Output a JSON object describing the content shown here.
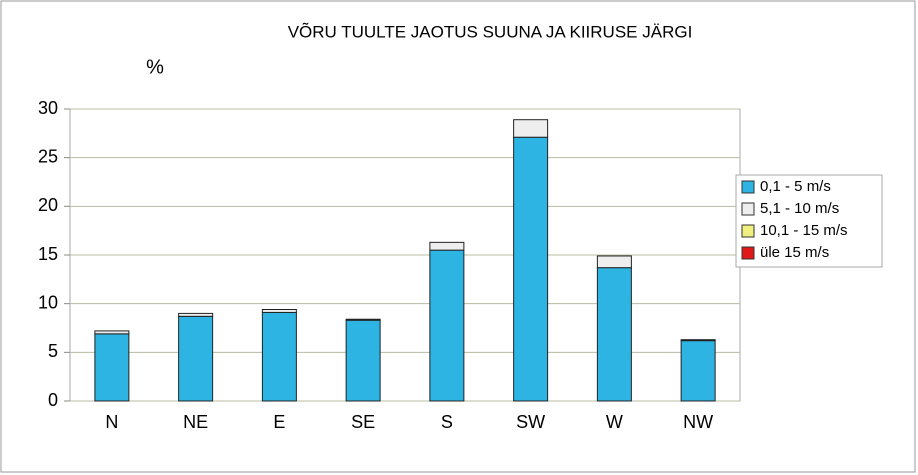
{
  "chart_data": {
    "type": "stacked-bar",
    "title": "VÕRU TUULTE JAOTUS SUUNA JA KIIRUSE JÄRGI",
    "y_label": "%",
    "categories": [
      "N",
      "NE",
      "E",
      "SE",
      "S",
      "SW",
      "W",
      "NW"
    ],
    "series": [
      {
        "name": "0,1 - 5 m/s",
        "color": "#2db4e2",
        "values": [
          6.9,
          8.7,
          9.1,
          8.3,
          15.5,
          27.1,
          13.7,
          6.2
        ]
      },
      {
        "name": "5,1 - 10 m/s",
        "color": "#eeeeee",
        "values": [
          0.3,
          0.3,
          0.3,
          0.1,
          0.8,
          1.8,
          1.2,
          0.1
        ]
      },
      {
        "name": "10,1 - 15 m/s",
        "color": "#f0ef80",
        "values": [
          0,
          0,
          0,
          0,
          0,
          0,
          0,
          0
        ]
      },
      {
        "name": "üle 15 m/s",
        "color": "#e01818",
        "values": [
          0,
          0,
          0,
          0,
          0,
          0,
          0,
          0
        ]
      }
    ],
    "ylim": [
      0,
      30
    ],
    "yticks": [
      0,
      5,
      10,
      15,
      20,
      25,
      30
    ],
    "grid": true,
    "legend": "right"
  }
}
